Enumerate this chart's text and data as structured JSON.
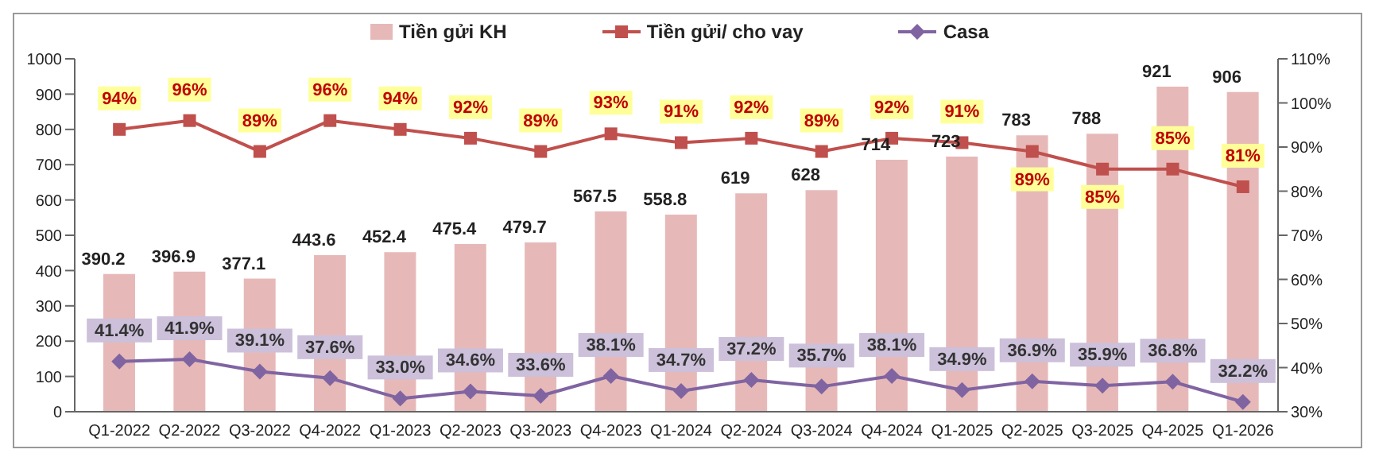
{
  "chart_data": {
    "type": "bar",
    "categories": [
      "Q1-2022",
      "Q2-2022",
      "Q3-2022",
      "Q4-2022",
      "Q1-2023",
      "Q2-2023",
      "Q3-2023",
      "Q4-2023",
      "Q1-2024",
      "Q2-2024",
      "Q3-2024",
      "Q4-2024",
      "Q1-2025",
      "Q2-2025",
      "Q3-2025",
      "Q4-2025",
      "Q1-2026"
    ],
    "series": [
      {
        "name": "Tiền gửi KH",
        "color": "#e6b9b8",
        "values": [
          390.2,
          396.9,
          377.1,
          443.6,
          452.4,
          475.4,
          479.7,
          567.5,
          558.8,
          619,
          628,
          714,
          723,
          783,
          788,
          921,
          906
        ],
        "value_labels": [
          "390.2",
          "396.9",
          "377.1",
          "443.6",
          "452.4",
          "475.4",
          "479.7",
          "567.5",
          "558.8",
          "619",
          "628",
          "714",
          "723",
          "783",
          "788",
          "921",
          "906"
        ]
      },
      {
        "name": "Tiền gửi/ cho vay",
        "type": "line",
        "axis": "y2",
        "marker": "square",
        "color": "#c0504d",
        "values": [
          94,
          96,
          89,
          96,
          94,
          92,
          89,
          93,
          91,
          92,
          89,
          92,
          91,
          89,
          85,
          85,
          81
        ],
        "value_labels": [
          "94%",
          "96%",
          "89%",
          "96%",
          "94%",
          "92%",
          "89%",
          "93%",
          "91%",
          "92%",
          "89%",
          "92%",
          "91%",
          "89%",
          "85%",
          "85%",
          "81%"
        ]
      },
      {
        "name": "Casa",
        "type": "line",
        "axis": "y2",
        "marker": "diamond",
        "color": "#8064a2",
        "values": [
          41.4,
          41.9,
          39.1,
          37.6,
          33.0,
          34.6,
          33.6,
          38.1,
          34.7,
          37.2,
          35.7,
          38.1,
          34.9,
          36.9,
          35.9,
          36.8,
          32.2
        ],
        "value_labels": [
          "41.4%",
          "41.9%",
          "39.1%",
          "37.6%",
          "33.0%",
          "34.6%",
          "33.6%",
          "38.1%",
          "34.7%",
          "37.2%",
          "35.7%",
          "38.1%",
          "34.9%",
          "36.9%",
          "35.9%",
          "36.8%",
          "32.2%"
        ]
      }
    ],
    "ylim": [
      0,
      1000
    ],
    "yticks": [
      0,
      100,
      200,
      300,
      400,
      500,
      600,
      700,
      800,
      900,
      1000
    ],
    "y2lim": [
      30,
      110
    ],
    "y2ticks": [
      {
        "value": 30,
        "label": "30%"
      },
      {
        "value": 40,
        "label": "40%"
      },
      {
        "value": 50,
        "label": "50%"
      },
      {
        "value": 60,
        "label": "60%"
      },
      {
        "value": 70,
        "label": "70%"
      },
      {
        "value": 80,
        "label": "80%"
      },
      {
        "value": 90,
        "label": "90%"
      },
      {
        "value": 100,
        "label": "100%"
      },
      {
        "value": 110,
        "label": "110%"
      }
    ],
    "grid": false,
    "legend": "top"
  }
}
